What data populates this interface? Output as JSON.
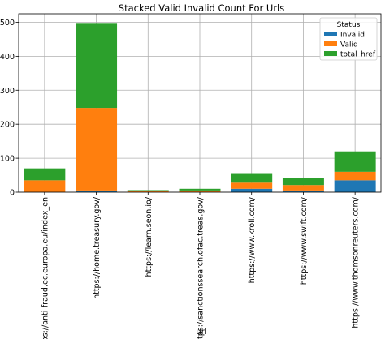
{
  "chart_data": {
    "type": "bar",
    "stacked": true,
    "title": "Stacked Valid Invalid Count For Urls",
    "xlabel": "url",
    "ylabel": "",
    "categories": [
      "https://anti-fraud.ec.europa.eu/index_en",
      "https://home.treasury.gov/",
      "https://learn.seon.io/",
      "https://sanctionssearch.ofac.treas.gov/",
      "https://www.kroll.com/",
      "https://www.swift.com/",
      "https://www.thomsonreuters.com/"
    ],
    "series": [
      {
        "name": "Invalid",
        "color": "#1f77b4",
        "values": [
          0,
          5,
          0,
          0,
          10,
          5,
          35
        ]
      },
      {
        "name": "Valid",
        "color": "#ff7f0e",
        "values": [
          35,
          243,
          3,
          5,
          18,
          16,
          25
        ]
      },
      {
        "name": "total_href",
        "color": "#2ca02c",
        "values": [
          35,
          250,
          3,
          5,
          28,
          21,
          60
        ]
      }
    ],
    "ylim": [
      0,
      525
    ],
    "yticks": [
      0,
      100,
      200,
      300,
      400,
      500
    ],
    "grid": true,
    "legend": {
      "title": "Status",
      "placement": "top-right"
    }
  }
}
